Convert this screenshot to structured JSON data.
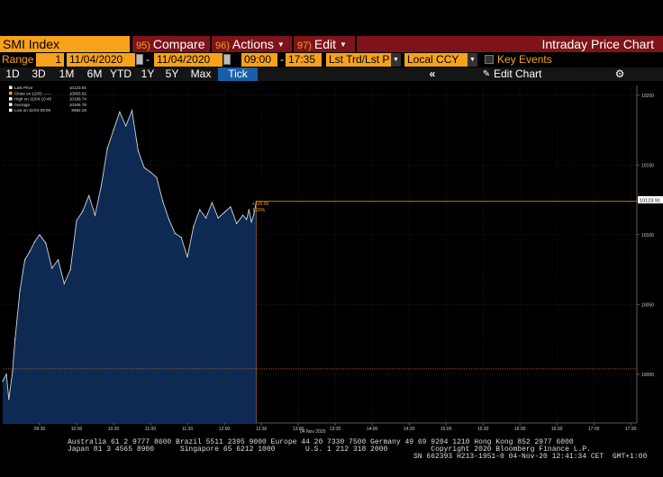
{
  "toolbar": {
    "security": "SMI Index",
    "compare": {
      "num": "95)",
      "label": "Compare"
    },
    "actions": {
      "num": "96)",
      "label": "Actions"
    },
    "edit": {
      "num": "97)",
      "label": "Edit"
    },
    "title": "Intraday Price Chart"
  },
  "controls": {
    "range_label": "Range",
    "range_value": "1",
    "start_date": "11/04/2020",
    "end_date": "11/04/2020",
    "start_time": "09:00",
    "time_sep": "-",
    "end_time": "17:35",
    "field": "Lst Trd/Lst P",
    "currency": "Local CCY",
    "key_events": "Key Events"
  },
  "tabs": [
    "1D",
    "3D",
    "1M",
    "6M",
    "YTD",
    "1Y",
    "5Y",
    "Max",
    "Tick"
  ],
  "active_tab": "Tick",
  "nav": {
    "collapse_icon": "double-chevron-left-icon",
    "edit_chart": "Edit Chart",
    "settings_icon": "gear-icon"
  },
  "legend": [
    {
      "label": "Last Price",
      "value": "10123.91",
      "color": "#ffffff"
    },
    {
      "label": "Close on 11/03 ------",
      "value": "10003.82",
      "color": "#f7a21b"
    },
    {
      "label": "High on 11/04 10:45",
      "value": "10189.74",
      "color": "#ffffff"
    },
    {
      "label": "Average",
      "value": "10106.78",
      "color": "#ffffff"
    },
    {
      "label": "Low on 11/04 09:05",
      "value": "9982.26",
      "color": "#ffffff"
    }
  ],
  "chart_data": {
    "type": "area",
    "x_labels": [
      "09:30",
      "10:00",
      "10:30",
      "11:00",
      "11:30",
      "12:00",
      "12:30",
      "13:00",
      "13:30",
      "14:00",
      "14:30",
      "15:00",
      "15:30",
      "16:00",
      "16:30",
      "17:00",
      "17:30"
    ],
    "date_label": "04 Nov 2020",
    "y_ticks": [
      10000,
      10050,
      10100,
      10150,
      10200
    ],
    "ylim": [
      9965,
      10207
    ],
    "xlim_minutes": [
      540,
      1055
    ],
    "series": [
      {
        "name": "Last Price",
        "x": [
          "09:00",
          "09:03",
          "09:05",
          "09:08",
          "09:10",
          "09:14",
          "09:18",
          "09:22",
          "09:26",
          "09:30",
          "09:35",
          "09:40",
          "09:45",
          "09:50",
          "09:55",
          "10:00",
          "10:05",
          "10:10",
          "10:15",
          "10:20",
          "10:25",
          "10:30",
          "10:35",
          "10:40",
          "10:45",
          "10:50",
          "10:55",
          "11:00",
          "11:05",
          "11:10",
          "11:15",
          "11:20",
          "11:25",
          "11:30",
          "11:35",
          "11:40",
          "11:45",
          "11:50",
          "11:55",
          "12:00",
          "12:05",
          "12:10",
          "12:15",
          "12:18",
          "12:20",
          "12:22",
          "12:24",
          "12:26"
        ],
        "y": [
          9995,
          10000,
          9982,
          10002,
          10025,
          10060,
          10082,
          10088,
          10095,
          10100,
          10094,
          10076,
          10082,
          10065,
          10075,
          10110,
          10117,
          10128,
          10114,
          10135,
          10162,
          10175,
          10188,
          10178,
          10189,
          10160,
          10148,
          10145,
          10141,
          10124,
          10111,
          10101,
          10098,
          10084,
          10106,
          10118,
          10112,
          10123,
          10112,
          10116,
          10120,
          10108,
          10114,
          10111,
          10118,
          10109,
          10115,
          10123.91
        ]
      }
    ],
    "last_price": "10123.91",
    "prev_close": "10003.82",
    "tag_change": "+120.09",
    "tag_pct": "1.20%"
  },
  "footer": {
    "line1": "Australia 61 2 9777 8600 Brazil 5511 2395 9000 Europe 44 20 7330 7500 Germany 49 69 9204 1210 Hong Kong 852 2977 6000",
    "line2": "Japan 81 3 4565 8900      Singapore 65 6212 1000       U.S. 1 212 318 2000          Copyright 2020 Bloomberg Finance L.P.",
    "line3": "SN 662393 H213-1951-0 04-Nov-20 12:41:34 CET  GMT+1:00"
  },
  "colors": {
    "accent": "#f7a21b",
    "menu_red": "#7e1419",
    "fill": "#0e2a52",
    "tab_active": "#1760a8"
  }
}
